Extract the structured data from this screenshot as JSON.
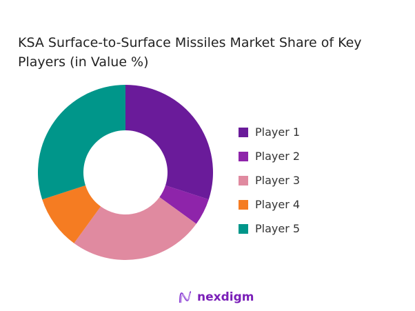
{
  "chart_data": {
    "type": "pie",
    "donut": true,
    "title": "KSA Surface-to-Surface Missiles Market Share of Key Players (in Value %)",
    "categories": [
      "Player 1",
      "Player 2",
      "Player 3",
      "Player 4",
      "Player 5"
    ],
    "values": [
      30,
      5,
      25,
      10,
      30
    ],
    "colors": [
      "#6a1b9a",
      "#8e24aa",
      "#e08aa0",
      "#f57c22",
      "#00968a"
    ],
    "legend": "right"
  },
  "logo": {
    "text": "nexdigm"
  }
}
